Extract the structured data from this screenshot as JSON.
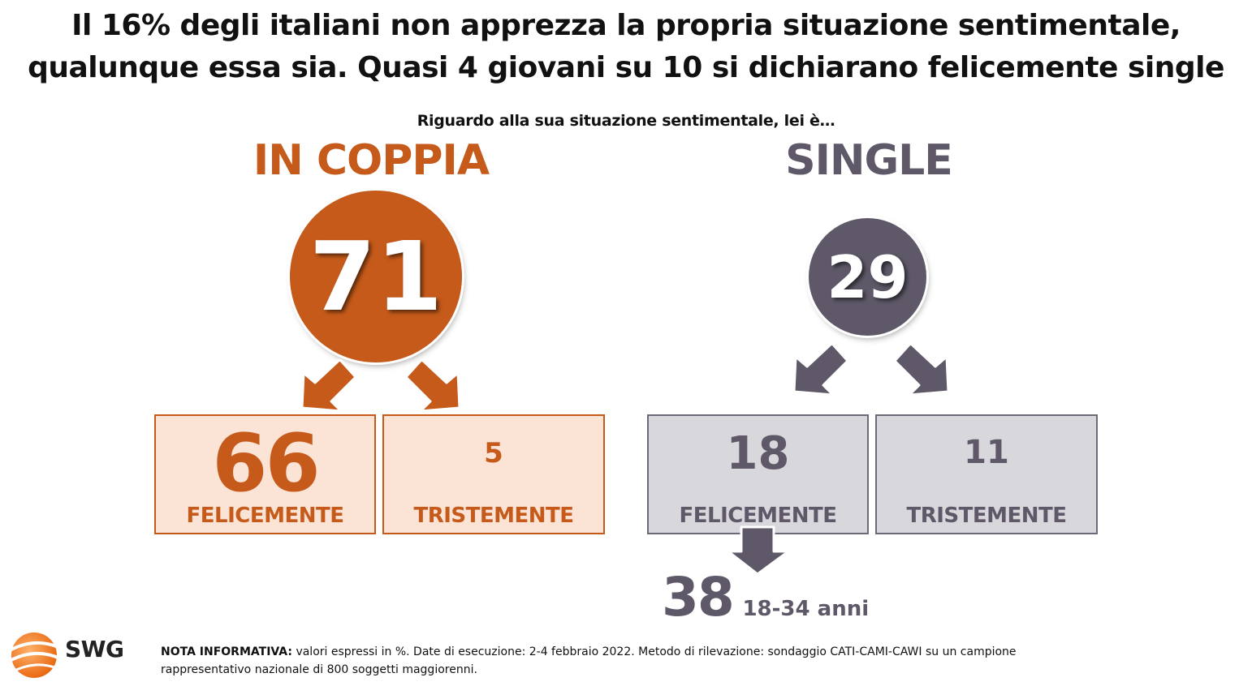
{
  "title": {
    "line1": "Il 16% degli italiani non apprezza la propria situazione sentimentale,",
    "line2": "qualunque essa sia. Quasi 4 giovani su 10 si dichiarano felicemente single"
  },
  "subtitle": "Riguardo alla sua situazione sentimentale, lei è…",
  "colors": {
    "orange": "#c55a1a",
    "orange_fill": "#fbe3d6",
    "gray": "#5e5868",
    "gray_fill": "#d8d7dc",
    "gray_border": "#6e6878"
  },
  "chart_data": {
    "type": "table",
    "unit": "%",
    "groups": [
      {
        "name": "IN COPPIA",
        "total": 71,
        "breakdown": [
          {
            "label": "FELICEMENTE",
            "value": 66
          },
          {
            "label": "TRISTEMENTE",
            "value": 5
          }
        ]
      },
      {
        "name": "SINGLE",
        "total": 29,
        "breakdown": [
          {
            "label": "FELICEMENTE",
            "value": 18
          },
          {
            "label": "TRISTEMENTE",
            "value": 11
          }
        ],
        "detail": {
          "value": 38,
          "label": "18-34 anni"
        }
      }
    ]
  },
  "note": {
    "label": "NOTA INFORMATIVA:",
    "text": "valori espressi in %. Date di esecuzione: 2-4 febbraio 2022. Metodo di rilevazione: sondaggio CATI-CAMI-CAWI su un campione rappresentativo nazionale di 800 soggetti maggiorenni."
  },
  "logo": {
    "text": "SWG",
    "icon": "swg-globe-icon"
  }
}
